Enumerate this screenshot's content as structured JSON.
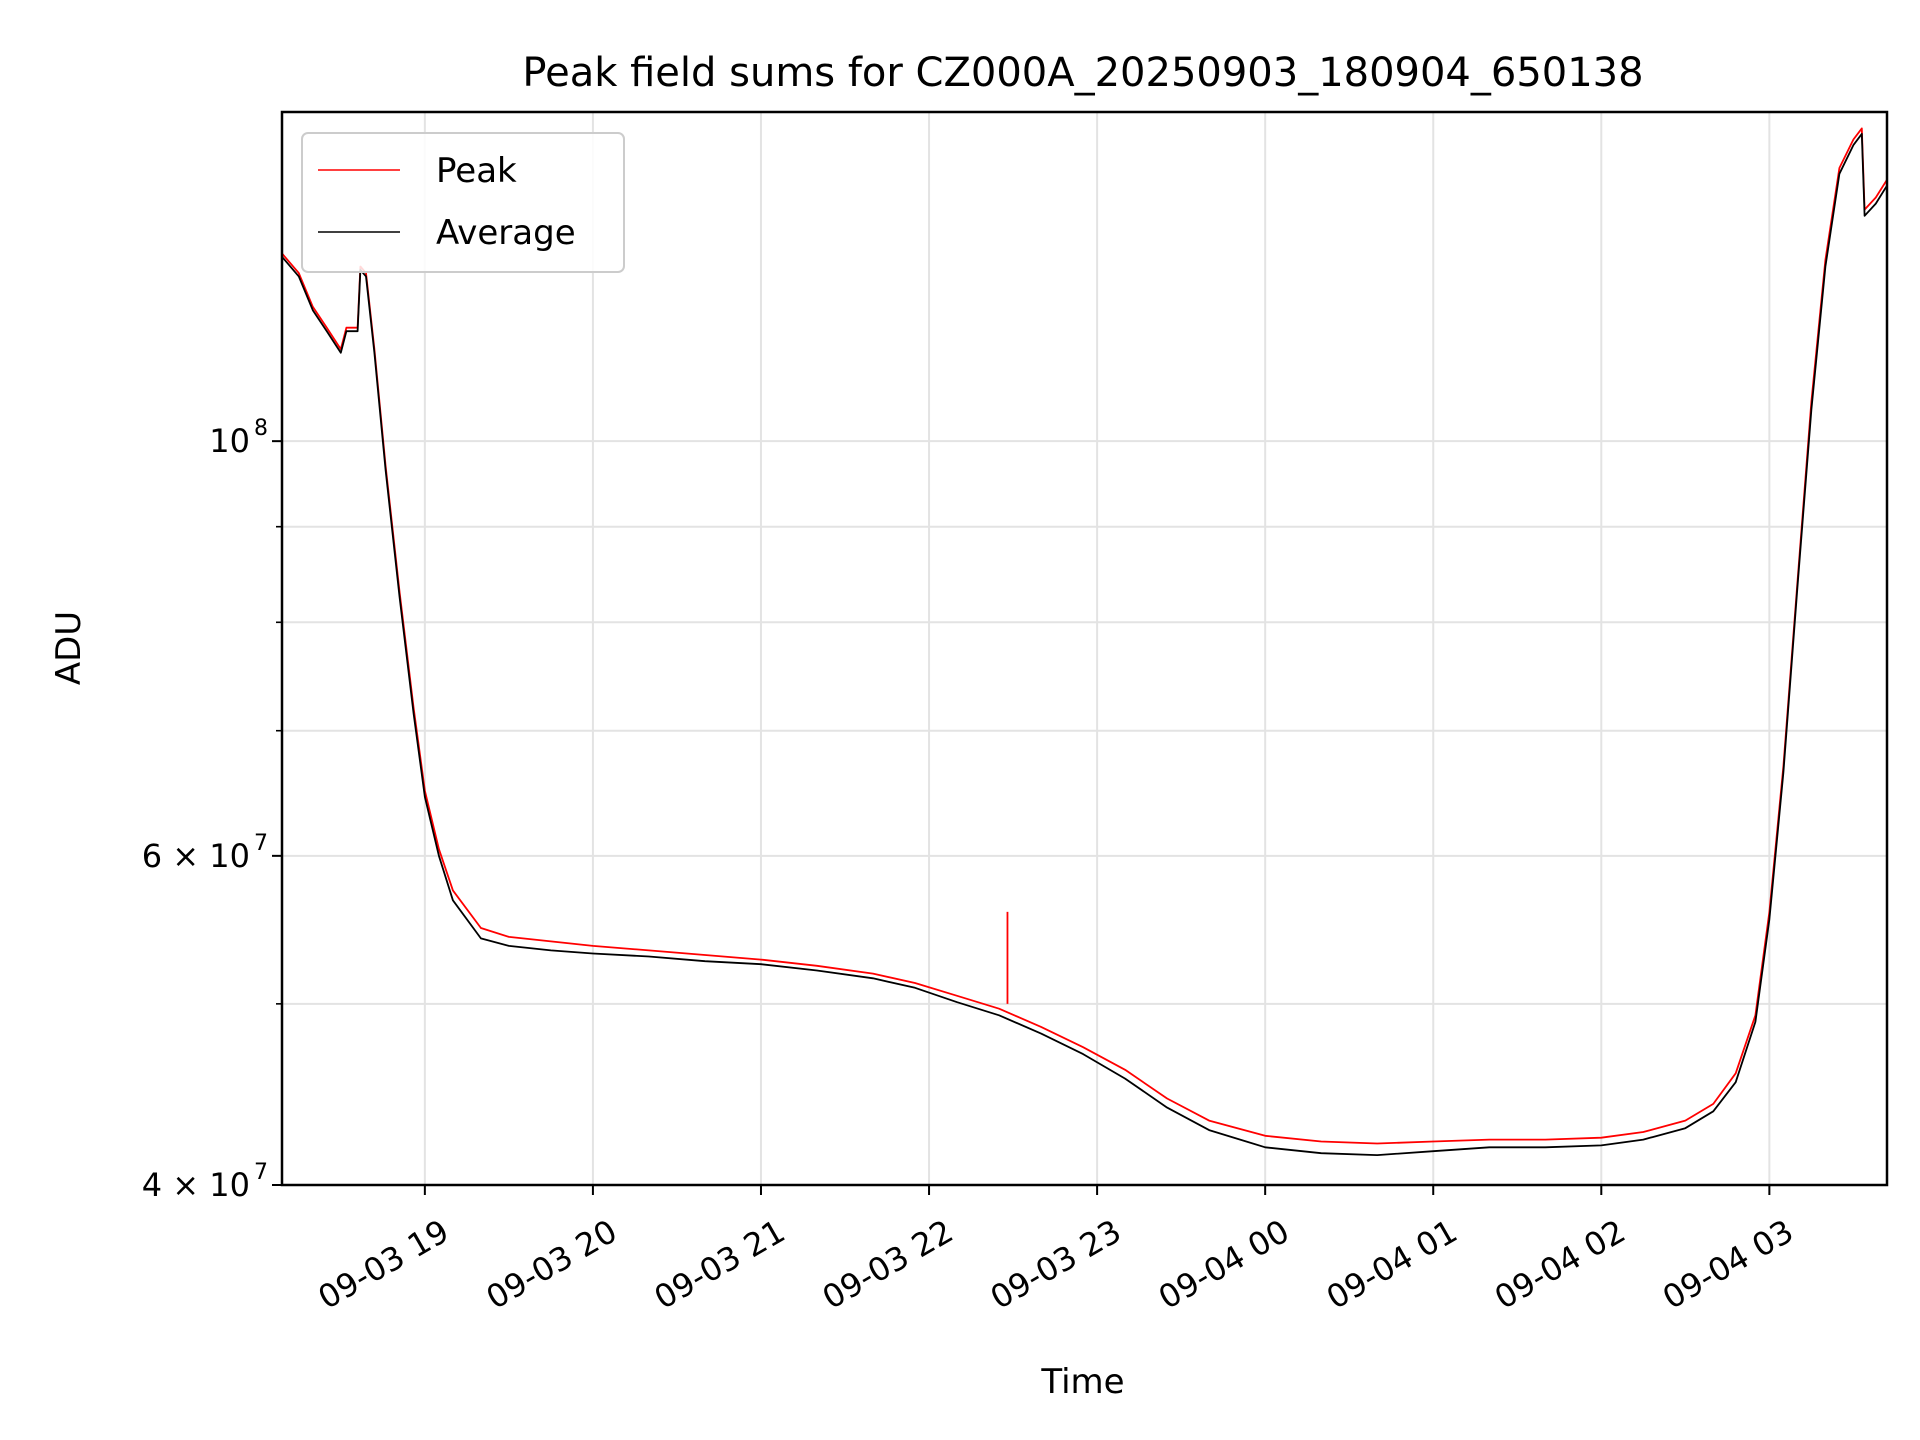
{
  "chart_data": {
    "type": "line",
    "title": "Peak field sums for CZ000A_20250903_180904_650138",
    "xlabel": "Time",
    "ylabel": "ADU",
    "y_scale": "log",
    "ylim": [
      40000000,
      150000000
    ],
    "xlim": [
      "2025-09-03 18:09",
      "2025-09-04 03:42"
    ],
    "grid": true,
    "legend_position": "top-left",
    "x_ticks": [
      {
        "t": "2025-09-03 19:00",
        "label": "09-03 19"
      },
      {
        "t": "2025-09-03 20:00",
        "label": "09-03 20"
      },
      {
        "t": "2025-09-03 21:00",
        "label": "09-03 21"
      },
      {
        "t": "2025-09-03 22:00",
        "label": "09-03 22"
      },
      {
        "t": "2025-09-03 23:00",
        "label": "09-03 23"
      },
      {
        "t": "2025-09-04 00:00",
        "label": "09-04 00"
      },
      {
        "t": "2025-09-04 01:00",
        "label": "09-04 01"
      },
      {
        "t": "2025-09-04 02:00",
        "label": "09-04 02"
      },
      {
        "t": "2025-09-04 03:00",
        "label": "09-04 03"
      }
    ],
    "y_ticks": [
      {
        "value": 40000000,
        "label": "4 × 10",
        "exp": "7"
      },
      {
        "value": 60000000,
        "label": "6 × 10",
        "exp": "7"
      },
      {
        "value": 100000000,
        "label": "10",
        "exp": "8"
      }
    ],
    "y_minor_ticks": [
      50000000,
      70000000,
      80000000,
      90000000
    ],
    "series": [
      {
        "name": "Peak",
        "color": "#ff0000",
        "x": [
          "2025-09-03 18:09",
          "2025-09-03 18:15",
          "2025-09-03 18:20",
          "2025-09-03 18:25",
          "2025-09-03 18:30",
          "2025-09-03 18:32",
          "2025-09-03 18:33",
          "2025-09-03 18:36",
          "2025-09-03 18:37",
          "2025-09-03 18:39",
          "2025-09-03 18:42",
          "2025-09-03 18:46",
          "2025-09-03 18:51",
          "2025-09-03 18:56",
          "2025-09-03 19:00",
          "2025-09-03 19:05",
          "2025-09-03 19:10",
          "2025-09-03 19:20",
          "2025-09-03 19:30",
          "2025-09-03 19:45",
          "2025-09-03 20:00",
          "2025-09-03 20:20",
          "2025-09-03 20:40",
          "2025-09-03 21:00",
          "2025-09-03 21:20",
          "2025-09-03 21:40",
          "2025-09-03 21:55",
          "2025-09-03 22:10",
          "2025-09-03 22:25",
          "2025-09-03 22:40",
          "2025-09-03 22:55",
          "2025-09-03 23:10",
          "2025-09-03 23:25",
          "2025-09-03 23:40",
          "2025-09-04 00:00",
          "2025-09-04 00:20",
          "2025-09-04 00:40",
          "2025-09-04 01:00",
          "2025-09-04 01:20",
          "2025-09-04 01:40",
          "2025-09-04 02:00",
          "2025-09-04 02:15",
          "2025-09-04 02:30",
          "2025-09-04 02:40",
          "2025-09-04 02:48",
          "2025-09-04 02:55",
          "2025-09-04 03:00",
          "2025-09-04 03:05",
          "2025-09-04 03:10",
          "2025-09-04 03:15",
          "2025-09-04 03:20",
          "2025-09-04 03:25",
          "2025-09-04 03:30",
          "2025-09-04 03:33",
          "2025-09-04 03:34",
          "2025-09-04 03:38",
          "2025-09-04 03:42"
        ],
        "y": [
          126000000,
          123000000,
          118000000,
          115000000,
          112000000,
          115000000,
          115000000,
          115000000,
          124000000,
          123000000,
          112000000,
          97000000,
          83000000,
          72000000,
          65000000,
          60500000,
          57500000,
          54900000,
          54300000,
          54000000,
          53700000,
          53400000,
          53100000,
          52800000,
          52400000,
          51900000,
          51300000,
          50500000,
          49700000,
          48600000,
          47400000,
          46100000,
          44500000,
          43300000,
          42500000,
          42200000,
          42100000,
          42200000,
          42300000,
          42300000,
          42400000,
          42700000,
          43300000,
          44200000,
          45900000,
          49300000,
          56000000,
          67000000,
          84000000,
          105000000,
          125000000,
          140000000,
          145000000,
          147000000,
          133000000,
          135000000,
          138000000
        ]
      },
      {
        "name": "Average",
        "color": "#000000",
        "x": [
          "2025-09-03 18:09",
          "2025-09-03 18:15",
          "2025-09-03 18:20",
          "2025-09-03 18:25",
          "2025-09-03 18:30",
          "2025-09-03 18:32",
          "2025-09-03 18:33",
          "2025-09-03 18:36",
          "2025-09-03 18:37",
          "2025-09-03 18:39",
          "2025-09-03 18:42",
          "2025-09-03 18:46",
          "2025-09-03 18:51",
          "2025-09-03 18:56",
          "2025-09-03 19:00",
          "2025-09-03 19:05",
          "2025-09-03 19:10",
          "2025-09-03 19:20",
          "2025-09-03 19:30",
          "2025-09-03 19:45",
          "2025-09-03 20:00",
          "2025-09-03 20:20",
          "2025-09-03 20:40",
          "2025-09-03 21:00",
          "2025-09-03 21:20",
          "2025-09-03 21:40",
          "2025-09-03 21:55",
          "2025-09-03 22:10",
          "2025-09-03 22:25",
          "2025-09-03 22:40",
          "2025-09-03 22:55",
          "2025-09-03 23:10",
          "2025-09-03 23:25",
          "2025-09-03 23:40",
          "2025-09-04 00:00",
          "2025-09-04 00:20",
          "2025-09-04 00:40",
          "2025-09-04 01:00",
          "2025-09-04 01:20",
          "2025-09-04 01:40",
          "2025-09-04 02:00",
          "2025-09-04 02:15",
          "2025-09-04 02:30",
          "2025-09-04 02:40",
          "2025-09-04 02:48",
          "2025-09-04 02:55",
          "2025-09-04 03:00",
          "2025-09-04 03:05",
          "2025-09-04 03:10",
          "2025-09-04 03:15",
          "2025-09-04 03:20",
          "2025-09-04 03:25",
          "2025-09-04 03:30",
          "2025-09-04 03:33",
          "2025-09-04 03:34",
          "2025-09-04 03:38",
          "2025-09-04 03:42"
        ],
        "y": [
          125500000,
          122500000,
          117500000,
          114500000,
          111500000,
          114500000,
          114500000,
          114500000,
          123500000,
          122500000,
          111500000,
          96500000,
          82500000,
          71500000,
          64500000,
          60000000,
          56800000,
          54200000,
          53700000,
          53400000,
          53200000,
          53000000,
          52700000,
          52500000,
          52100000,
          51600000,
          51000000,
          50100000,
          49300000,
          48200000,
          47000000,
          45600000,
          44000000,
          42800000,
          41900000,
          41600000,
          41500000,
          41700000,
          41900000,
          41900000,
          42000000,
          42300000,
          42900000,
          43800000,
          45400000,
          48900000,
          55500000,
          66500000,
          83500000,
          104000000,
          124000000,
          139000000,
          144000000,
          146000000,
          132000000,
          134000000,
          137000000
        ]
      }
    ],
    "annotations": [
      {
        "t": "2025-09-03 22:28",
        "y": 56000000,
        "series": "Peak",
        "note": "spike"
      }
    ]
  }
}
